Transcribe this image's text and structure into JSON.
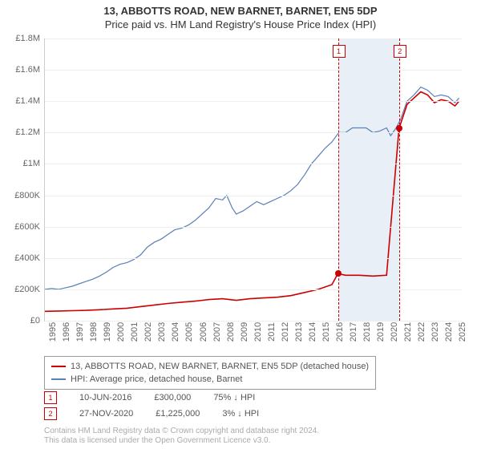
{
  "title": "13, ABBOTTS ROAD, NEW BARNET, BARNET, EN5 5DP",
  "subtitle": "Price paid vs. HM Land Registry's House Price Index (HPI)",
  "chart": {
    "type": "line",
    "ylim": [
      0,
      1800000
    ],
    "ytick_step": 200000,
    "y_ticks": [
      "£0",
      "£200K",
      "£400K",
      "£600K",
      "£800K",
      "£1M",
      "£1.2M",
      "£1.4M",
      "£1.6M",
      "£1.8M"
    ],
    "x_start": 1995,
    "x_end": 2025.5,
    "x_ticks": [
      "1995",
      "1996",
      "1997",
      "1998",
      "1999",
      "2000",
      "2001",
      "2002",
      "2003",
      "2004",
      "2005",
      "2006",
      "2007",
      "2008",
      "2009",
      "2010",
      "2011",
      "2012",
      "2013",
      "2014",
      "2015",
      "2016",
      "2017",
      "2018",
      "2019",
      "2020",
      "2021",
      "2022",
      "2023",
      "2024",
      "2025"
    ],
    "background_color": "#ffffff",
    "grid_color": "#eeeeee",
    "highlight": {
      "start": 2016.44,
      "end": 2020.91,
      "color": "rgba(200,215,235,0.4)"
    },
    "series": [
      {
        "name": "hpi",
        "color": "#5b7fb8",
        "width": 1.2,
        "points": [
          [
            1995,
            200000
          ],
          [
            1995.5,
            205000
          ],
          [
            1996,
            200000
          ],
          [
            1996.5,
            210000
          ],
          [
            1997,
            220000
          ],
          [
            1997.5,
            235000
          ],
          [
            1998,
            250000
          ],
          [
            1998.5,
            265000
          ],
          [
            1999,
            285000
          ],
          [
            1999.5,
            310000
          ],
          [
            2000,
            340000
          ],
          [
            2000.5,
            360000
          ],
          [
            2001,
            370000
          ],
          [
            2001.5,
            390000
          ],
          [
            2002,
            420000
          ],
          [
            2002.5,
            470000
          ],
          [
            2003,
            500000
          ],
          [
            2003.5,
            520000
          ],
          [
            2004,
            550000
          ],
          [
            2004.5,
            580000
          ],
          [
            2005,
            590000
          ],
          [
            2005.5,
            610000
          ],
          [
            2006,
            640000
          ],
          [
            2006.5,
            680000
          ],
          [
            2007,
            720000
          ],
          [
            2007.5,
            780000
          ],
          [
            2008,
            770000
          ],
          [
            2008.3,
            800000
          ],
          [
            2008.7,
            720000
          ],
          [
            2009,
            680000
          ],
          [
            2009.5,
            700000
          ],
          [
            2010,
            730000
          ],
          [
            2010.5,
            760000
          ],
          [
            2011,
            740000
          ],
          [
            2011.5,
            760000
          ],
          [
            2012,
            780000
          ],
          [
            2012.5,
            800000
          ],
          [
            2013,
            830000
          ],
          [
            2013.5,
            870000
          ],
          [
            2014,
            930000
          ],
          [
            2014.5,
            1000000
          ],
          [
            2015,
            1050000
          ],
          [
            2015.5,
            1100000
          ],
          [
            2016,
            1140000
          ],
          [
            2016.5,
            1200000
          ],
          [
            2017,
            1200000
          ],
          [
            2017.5,
            1230000
          ],
          [
            2018,
            1230000
          ],
          [
            2018.5,
            1230000
          ],
          [
            2019,
            1200000
          ],
          [
            2019.5,
            1210000
          ],
          [
            2020,
            1230000
          ],
          [
            2020.3,
            1180000
          ],
          [
            2020.7,
            1230000
          ],
          [
            2021,
            1280000
          ],
          [
            2021.5,
            1400000
          ],
          [
            2022,
            1440000
          ],
          [
            2022.5,
            1490000
          ],
          [
            2023,
            1470000
          ],
          [
            2023.5,
            1430000
          ],
          [
            2024,
            1440000
          ],
          [
            2024.5,
            1430000
          ],
          [
            2025,
            1390000
          ],
          [
            2025.3,
            1420000
          ]
        ]
      },
      {
        "name": "price-paid",
        "color": "#cc0000",
        "width": 1.6,
        "points": [
          [
            1995,
            60000
          ],
          [
            1996,
            62000
          ],
          [
            1997,
            64000
          ],
          [
            1998,
            66000
          ],
          [
            1999,
            70000
          ],
          [
            2000,
            75000
          ],
          [
            2001,
            80000
          ],
          [
            2002,
            90000
          ],
          [
            2003,
            100000
          ],
          [
            2004,
            110000
          ],
          [
            2005,
            118000
          ],
          [
            2006,
            125000
          ],
          [
            2007,
            135000
          ],
          [
            2008,
            140000
          ],
          [
            2009,
            130000
          ],
          [
            2010,
            140000
          ],
          [
            2011,
            145000
          ],
          [
            2012,
            150000
          ],
          [
            2013,
            160000
          ],
          [
            2014,
            180000
          ],
          [
            2015,
            200000
          ],
          [
            2016,
            230000
          ],
          [
            2016.44,
            300000
          ],
          [
            2017,
            290000
          ],
          [
            2018,
            290000
          ],
          [
            2019,
            285000
          ],
          [
            2020,
            290000
          ],
          [
            2020.91,
            1225000
          ],
          [
            2021,
            1250000
          ],
          [
            2021.5,
            1380000
          ],
          [
            2022,
            1420000
          ],
          [
            2022.5,
            1460000
          ],
          [
            2023,
            1440000
          ],
          [
            2023.5,
            1390000
          ],
          [
            2024,
            1410000
          ],
          [
            2024.5,
            1400000
          ],
          [
            2025,
            1370000
          ],
          [
            2025.3,
            1400000
          ]
        ]
      }
    ],
    "sale_markers": [
      {
        "idx": "1",
        "year": 2016.44,
        "price": 300000,
        "color": "#cc0000"
      },
      {
        "idx": "2",
        "year": 2020.91,
        "price": 1225000,
        "color": "#cc0000"
      }
    ]
  },
  "legend": {
    "items": [
      {
        "color": "#cc0000",
        "label": "13, ABBOTTS ROAD, NEW BARNET, BARNET, EN5 5DP (detached house)"
      },
      {
        "color": "#5b7fb8",
        "label": "HPI: Average price, detached house, Barnet"
      }
    ]
  },
  "sales": [
    {
      "idx": "1",
      "date": "10-JUN-2016",
      "price": "£300,000",
      "delta": "75% ↓ HPI"
    },
    {
      "idx": "2",
      "date": "27-NOV-2020",
      "price": "£1,225,000",
      "delta": "3% ↓ HPI"
    }
  ],
  "footer": {
    "line1": "Contains HM Land Registry data © Crown copyright and database right 2024.",
    "line2": "This data is licensed under the Open Government Licence v3.0."
  }
}
